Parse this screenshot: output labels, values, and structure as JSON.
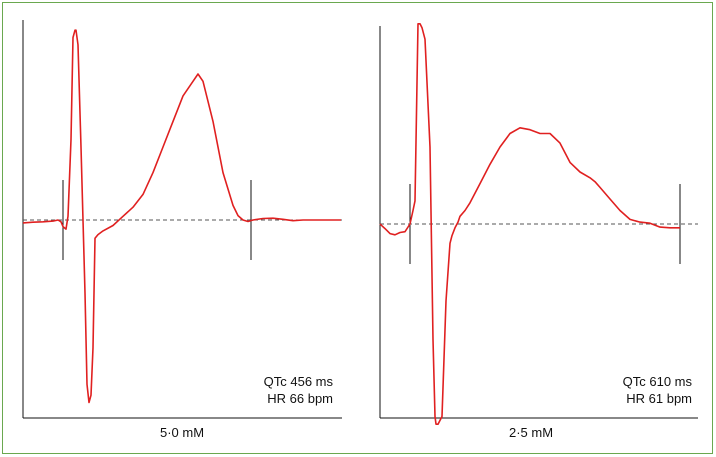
{
  "chart_data": [
    {
      "type": "line",
      "title": "",
      "xlabel": "5·0 mM",
      "ylabel": "",
      "grid": false,
      "annotations": [
        "QTc 456 ms",
        "HR 66 bpm"
      ],
      "series": [
        {
          "color": "#e02020",
          "x": [
            0,
            10,
            20,
            30,
            35,
            38,
            40,
            43,
            45,
            48,
            50,
            52,
            53,
            55,
            58,
            62,
            64,
            66,
            68,
            70,
            72,
            75,
            80,
            90,
            100,
            110,
            120,
            130,
            140,
            150,
            160,
            170,
            175,
            180,
            190,
            200,
            210,
            215,
            220,
            225,
            230,
            240,
            250,
            260,
            270,
            280,
            290,
            300,
            310,
            318
          ],
          "y": [
            -0.08,
            -0.06,
            -0.05,
            -0.03,
            0.0,
            -0.05,
            -0.18,
            -0.25,
            0.1,
            2.2,
            5.0,
            5.2,
            5.2,
            4.8,
            2.0,
            -2.0,
            -4.5,
            -5.0,
            -4.8,
            -3.5,
            -0.5,
            -0.4,
            -0.3,
            -0.15,
            0.1,
            0.35,
            0.7,
            1.3,
            2.0,
            2.7,
            3.4,
            3.8,
            4.0,
            3.8,
            2.7,
            1.3,
            0.4,
            0.12,
            0.0,
            -0.04,
            0.0,
            0.04,
            0.05,
            0.02,
            -0.02,
            0.0,
            0.0,
            0.0,
            0.0,
            0.0
          ]
        }
      ],
      "markers": [
        40,
        228
      ]
    },
    {
      "type": "line",
      "title": "",
      "xlabel": "2·5 mM",
      "ylabel": "",
      "grid": false,
      "annotations": [
        "QTc 610 ms",
        "HR 61 bpm"
      ],
      "series": [
        {
          "color": "#e02020",
          "x": [
            0,
            5,
            10,
            15,
            20,
            25,
            30,
            33,
            35,
            38,
            40,
            42,
            45,
            50,
            53,
            55,
            56,
            58,
            62,
            66,
            70,
            72,
            75,
            78,
            80,
            85,
            90,
            100,
            110,
            120,
            130,
            140,
            150,
            160,
            170,
            180,
            190,
            200,
            210,
            215,
            220,
            230,
            240,
            250,
            260,
            270,
            280,
            290,
            300
          ],
          "y": [
            0.0,
            -0.12,
            -0.25,
            -0.28,
            -0.22,
            -0.2,
            0.0,
            0.35,
            0.6,
            5.2,
            5.2,
            5.1,
            4.8,
            2.0,
            -3.0,
            -5.0,
            -5.2,
            -5.2,
            -5.0,
            -2.0,
            -0.5,
            -0.3,
            -0.1,
            0.05,
            0.2,
            0.35,
            0.55,
            1.05,
            1.55,
            2.0,
            2.35,
            2.5,
            2.45,
            2.35,
            2.35,
            2.1,
            1.6,
            1.35,
            1.2,
            1.1,
            0.95,
            0.65,
            0.35,
            0.12,
            0.05,
            0.02,
            -0.08,
            -0.1,
            -0.1
          ]
        }
      ],
      "markers": [
        30,
        300
      ]
    }
  ]
}
